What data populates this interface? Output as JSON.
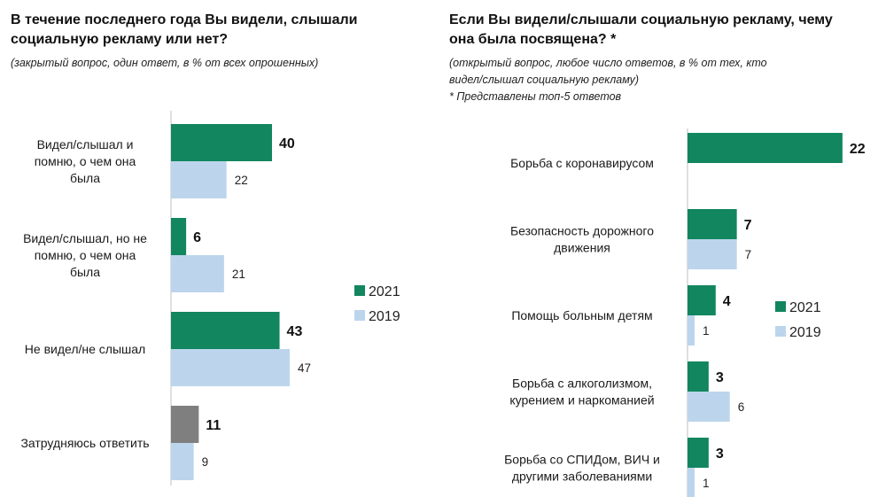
{
  "legend": [
    {
      "label": "2021",
      "color": "#12865e"
    },
    {
      "label": "2019",
      "color": "#bcd5ec"
    }
  ],
  "colors": {
    "highlight_2021": "#7f7f7f",
    "axis": "#bfbfbf"
  },
  "chart_data": [
    {
      "type": "bar",
      "orientation": "horizontal",
      "title": "В течение последнего года Вы видели, слышали\nсоциальную рекламу или нет?",
      "subtitle": "(закрытый вопрос, один ответ, в % от всех опрошенных)",
      "categories": [
        "Видел/слышал и\nпомню, о чем она\nбыла",
        "Видел/слышал, но не\nпомню, о чем она\nбыла",
        "Не видел/не слышал",
        "Затрудняюсь ответить"
      ],
      "series": [
        {
          "name": "2021",
          "values": [
            40,
            6,
            43,
            11
          ]
        },
        {
          "name": "2019",
          "values": [
            22,
            21,
            47,
            9
          ]
        }
      ],
      "legend_position": "right"
    },
    {
      "type": "bar",
      "orientation": "horizontal",
      "title": "Если Вы видели/слышали социальную рекламу, чему\nона была посвящена? *",
      "subtitle": "(открытый вопрос, любое число ответов, в % от тех, кто\nвидел/слышал социальную рекламу)\n* Представлены топ-5 ответов",
      "categories": [
        "Борьба с коронавирусом",
        "Безопасность дорожного\nдвижения",
        "Помощь больным детям",
        "Борьба с алкоголизмом,\nкурением и наркоманией",
        "Борьба со СПИДом, ВИЧ и\nдругими заболеваниями"
      ],
      "series": [
        {
          "name": "2021",
          "values": [
            22,
            7,
            4,
            3,
            3
          ]
        },
        {
          "name": "2019",
          "values": [
            null,
            7,
            1,
            6,
            1
          ]
        }
      ],
      "legend_position": "right"
    }
  ]
}
